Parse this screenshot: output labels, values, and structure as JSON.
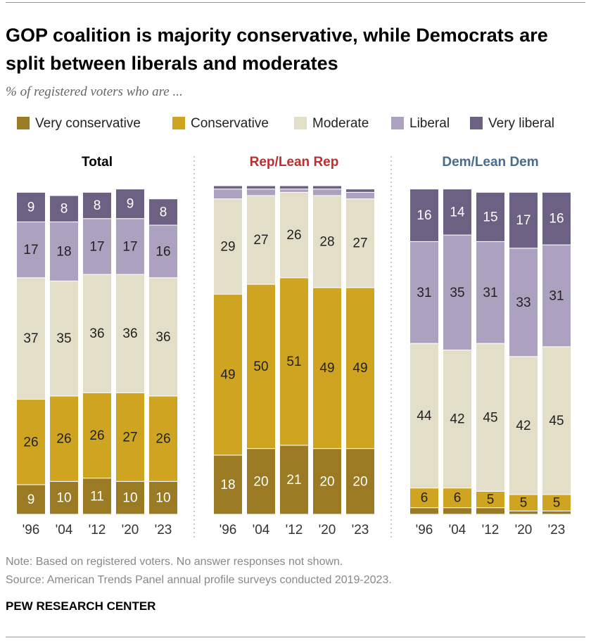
{
  "title": "GOP coalition is majority conservative, while Democrats are split between liberals and moderates",
  "subtitle": "% of registered voters who are ...",
  "note": "Note: Based on registered voters. No answer responses not shown.",
  "source": "Source: American Trends Panel annual profile surveys conducted 2019-2023.",
  "brand": "PEW RESEARCH CENTER",
  "chart_data": [
    {
      "type": "bar",
      "stacked": true,
      "title": "Total",
      "title_color": "#000000",
      "categories": [
        "'96",
        "'04",
        "'12",
        "'20",
        "'23"
      ],
      "ylim": [
        0,
        100
      ],
      "series": [
        {
          "name": "Very conservative",
          "color": "#9a7b23",
          "values": [
            9,
            10,
            11,
            10,
            10
          ]
        },
        {
          "name": "Conservative",
          "color": "#cfa420",
          "values": [
            26,
            26,
            26,
            27,
            26
          ]
        },
        {
          "name": "Moderate",
          "color": "#e2dec8",
          "values": [
            37,
            35,
            36,
            36,
            36
          ]
        },
        {
          "name": "Liberal",
          "color": "#ada1c0",
          "values": [
            17,
            18,
            17,
            17,
            16
          ]
        },
        {
          "name": "Very liberal",
          "color": "#6c6083",
          "values": [
            9,
            8,
            8,
            9,
            8
          ]
        }
      ]
    },
    {
      "type": "bar",
      "stacked": true,
      "title": "Rep/Lean Rep",
      "title_color": "#b8312f",
      "categories": [
        "'96",
        "'04",
        "'12",
        "'20",
        "'23"
      ],
      "ylim": [
        0,
        100
      ],
      "series": [
        {
          "name": "Very conservative",
          "color": "#9a7b23",
          "values": [
            18,
            20,
            21,
            20,
            20
          ]
        },
        {
          "name": "Conservative",
          "color": "#cfa420",
          "values": [
            49,
            50,
            51,
            49,
            49
          ]
        },
        {
          "name": "Moderate",
          "color": "#e2dec8",
          "values": [
            29,
            27,
            26,
            28,
            27
          ]
        },
        {
          "name": "Liberal",
          "color": "#ada1c0",
          "values": [
            3,
            2,
            1,
            2,
            2
          ]
        },
        {
          "name": "Very liberal",
          "color": "#6c6083",
          "values": [
            1,
            1,
            1,
            1,
            1
          ]
        }
      ]
    },
    {
      "type": "bar",
      "stacked": true,
      "title": "Dem/Lean Dem",
      "title_color": "#4a6c8c",
      "categories": [
        "'96",
        "'04",
        "'12",
        "'20",
        "'23"
      ],
      "ylim": [
        0,
        100
      ],
      "series": [
        {
          "name": "Very conservative",
          "color": "#9a7b23",
          "values": [
            2,
            2,
            2,
            1,
            1
          ]
        },
        {
          "name": "Conservative",
          "color": "#cfa420",
          "values": [
            6,
            6,
            5,
            5,
            5
          ]
        },
        {
          "name": "Moderate",
          "color": "#e2dec8",
          "values": [
            44,
            42,
            45,
            42,
            45
          ]
        },
        {
          "name": "Liberal",
          "color": "#ada1c0",
          "values": [
            31,
            35,
            31,
            33,
            31
          ]
        },
        {
          "name": "Very liberal",
          "color": "#6c6083",
          "values": [
            16,
            14,
            15,
            17,
            16
          ]
        }
      ]
    }
  ]
}
